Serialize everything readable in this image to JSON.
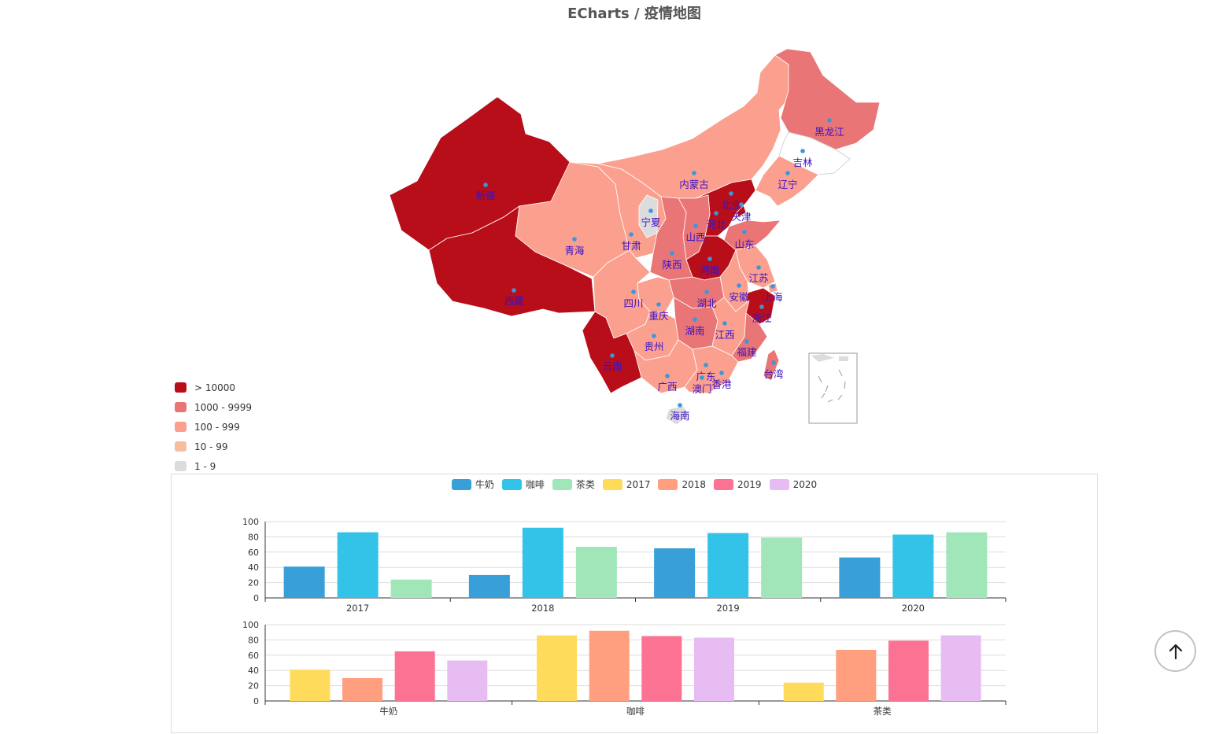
{
  "title": "ECharts / 疫情地图",
  "colors": {
    "c_gt10000": "#b80e1a",
    "c_1000": "#ea7576",
    "c_100": "#fba08e",
    "c_10": "#f8bd9e",
    "c_1": "#dcdcdc",
    "label": "#3a11c4",
    "dot": "#3898dc"
  },
  "map_legend": [
    {
      "label": "> 10000",
      "color": "#b80e1a"
    },
    {
      "label": "1000 - 9999",
      "color": "#ea7576"
    },
    {
      "label": "100 - 999",
      "color": "#fba08e"
    },
    {
      "label": "10 - 99",
      "color": "#f8bd9e"
    },
    {
      "label": "1 - 9",
      "color": "#dcdcdc"
    }
  ],
  "map_regions": [
    {
      "name": "新疆",
      "level": "> 10000"
    },
    {
      "name": "西藏",
      "level": "> 10000"
    },
    {
      "name": "青海",
      "level": "100 - 999"
    },
    {
      "name": "甘肃",
      "level": "100 - 999"
    },
    {
      "name": "内蒙古",
      "level": "100 - 999"
    },
    {
      "name": "宁夏",
      "level": "1 - 9"
    },
    {
      "name": "黑龙江",
      "level": "1000 - 9999"
    },
    {
      "name": "吉林",
      "level": ""
    },
    {
      "name": "辽宁",
      "level": "100 - 999"
    },
    {
      "name": "北京",
      "level": "> 10000"
    },
    {
      "name": "天津",
      "level": "> 10000"
    },
    {
      "name": "河北",
      "level": "> 10000"
    },
    {
      "name": "山西",
      "level": "1000 - 9999"
    },
    {
      "name": "山东",
      "level": "1000 - 9999"
    },
    {
      "name": "陕西",
      "level": "1000 - 9999"
    },
    {
      "name": "河南",
      "level": "> 10000"
    },
    {
      "name": "江苏",
      "level": "100 - 999"
    },
    {
      "name": "上海",
      "level": "100 - 999"
    },
    {
      "name": "安徽",
      "level": "100 - 999"
    },
    {
      "name": "浙江",
      "level": "> 10000"
    },
    {
      "name": "湖北",
      "level": "1000 - 9999"
    },
    {
      "name": "四川",
      "level": "100 - 999"
    },
    {
      "name": "重庆",
      "level": "100 - 999"
    },
    {
      "name": "湖南",
      "level": "1000 - 9999"
    },
    {
      "name": "江西",
      "level": "100 - 999"
    },
    {
      "name": "福建",
      "level": "1000 - 9999"
    },
    {
      "name": "贵州",
      "level": "100 - 999"
    },
    {
      "name": "云南",
      "level": "> 10000"
    },
    {
      "name": "广西",
      "level": "100 - 999"
    },
    {
      "name": "广东",
      "level": "100 - 999"
    },
    {
      "name": "香港",
      "level": ""
    },
    {
      "name": "澳门",
      "level": ""
    },
    {
      "name": "台湾",
      "level": "1000 - 9999"
    },
    {
      "name": "海南",
      "level": "1 - 9"
    },
    {
      "name": "南海诸岛",
      "level": ""
    }
  ],
  "bar_legend": [
    {
      "name": "牛奶",
      "color": "#389fd9"
    },
    {
      "name": "咖啡",
      "color": "#33c2e8"
    },
    {
      "name": "茶类",
      "color": "#a1e6b9"
    },
    {
      "name": "2017",
      "color": "#ffdb5c"
    },
    {
      "name": "2018",
      "color": "#ff9f7f"
    },
    {
      "name": "2019",
      "color": "#fb7293"
    },
    {
      "name": "2020",
      "color": "#e7bcf3"
    }
  ],
  "chart_data": [
    {
      "type": "bar",
      "categories": [
        "2017",
        "2018",
        "2019",
        "2020"
      ],
      "series": [
        {
          "name": "牛奶",
          "values": [
            41,
            30,
            65,
            53
          ]
        },
        {
          "name": "咖啡",
          "values": [
            86,
            92,
            85,
            83
          ]
        },
        {
          "name": "茶类",
          "values": [
            24,
            67,
            79,
            86
          ]
        }
      ],
      "yticks": [
        "0",
        "20",
        "40",
        "60",
        "80",
        "100"
      ],
      "ylim": [
        0,
        100
      ]
    },
    {
      "type": "bar",
      "categories": [
        "牛奶",
        "咖啡",
        "茶类"
      ],
      "series": [
        {
          "name": "2017",
          "values": [
            41,
            86,
            24
          ]
        },
        {
          "name": "2018",
          "values": [
            30,
            92,
            67
          ]
        },
        {
          "name": "2019",
          "values": [
            65,
            85,
            79
          ]
        },
        {
          "name": "2020",
          "values": [
            53,
            83,
            86
          ]
        }
      ],
      "yticks": [
        "0",
        "20",
        "40",
        "60",
        "80",
        "100"
      ],
      "ylim": [
        0,
        100
      ]
    }
  ],
  "scroll_top": {
    "icon": "arrow-up-icon"
  }
}
